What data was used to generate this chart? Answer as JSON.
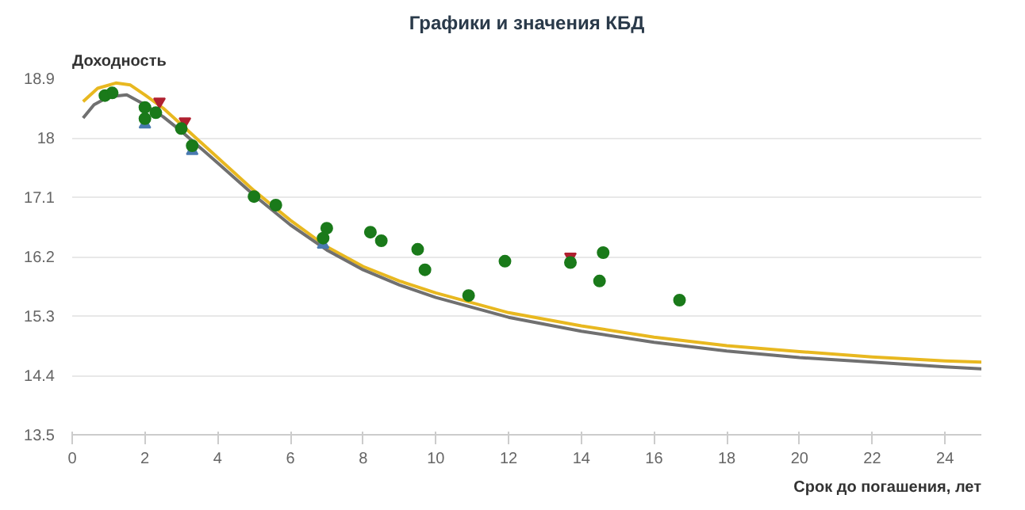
{
  "chart_data": {
    "type": "line",
    "title": "Графики и значения КБД",
    "xlabel": "Срок до погашения, лет",
    "ylabel": "Доходность",
    "xlim": [
      0,
      25
    ],
    "ylim": [
      13.5,
      18.9
    ],
    "xticks": [
      0,
      2,
      4,
      6,
      8,
      10,
      12,
      14,
      16,
      18,
      20,
      22,
      24
    ],
    "yticks": [
      13.5,
      14.4,
      15.3,
      16.2,
      17.1,
      18,
      18.9
    ],
    "grid": "y",
    "series": [
      {
        "color": "#e8b820",
        "x": [
          0.3,
          0.7,
          1.2,
          1.6,
          2,
          2.5,
          3,
          3.5,
          4,
          5,
          6,
          7,
          8,
          9,
          10,
          12,
          14,
          16,
          18,
          20,
          22,
          24,
          25
        ],
        "values": [
          18.55,
          18.75,
          18.83,
          18.8,
          18.65,
          18.45,
          18.2,
          17.95,
          17.7,
          17.2,
          16.75,
          16.35,
          16.05,
          15.83,
          15.65,
          15.35,
          15.15,
          14.98,
          14.85,
          14.76,
          14.68,
          14.62,
          14.6
        ]
      },
      {
        "color": "#707070",
        "x": [
          0.3,
          0.6,
          1,
          1.5,
          2,
          2.5,
          3,
          3.5,
          4,
          5,
          6,
          7,
          8,
          9,
          10,
          12,
          14,
          16,
          18,
          20,
          22,
          24,
          25
        ],
        "values": [
          18.3,
          18.5,
          18.62,
          18.65,
          18.5,
          18.32,
          18.1,
          17.86,
          17.62,
          17.13,
          16.68,
          16.3,
          16.0,
          15.77,
          15.58,
          15.28,
          15.07,
          14.9,
          14.77,
          14.67,
          14.6,
          14.53,
          14.5
        ]
      },
      {
        "type": "scatter",
        "color": "#b02030",
        "x": [
          2.4,
          3.1,
          13.7
        ],
        "values": [
          18.55,
          18.25,
          16.2
        ]
      },
      {
        "type": "scatter",
        "marker": "triangle",
        "color": "#4a7ab0",
        "x": [
          2.0,
          3.3,
          6.9
        ],
        "values": [
          18.2,
          17.8,
          16.38
        ]
      },
      {
        "type": "scatter",
        "marker": "circle",
        "color": "#1a7a1a",
        "x": [
          0.9,
          1.1,
          2.0,
          2.0,
          2.3,
          3.0,
          3.3,
          5.0,
          5.6,
          6.9,
          7.0,
          8.2,
          8.5,
          9.5,
          9.7,
          10.9,
          11.9,
          13.7,
          14.5,
          14.6,
          16.7
        ],
        "values": [
          18.64,
          18.68,
          18.46,
          18.29,
          18.38,
          18.14,
          17.88,
          17.11,
          16.98,
          16.48,
          16.63,
          16.57,
          16.44,
          16.31,
          16.0,
          15.61,
          16.13,
          16.11,
          15.83,
          16.26,
          15.54
        ]
      }
    ]
  }
}
